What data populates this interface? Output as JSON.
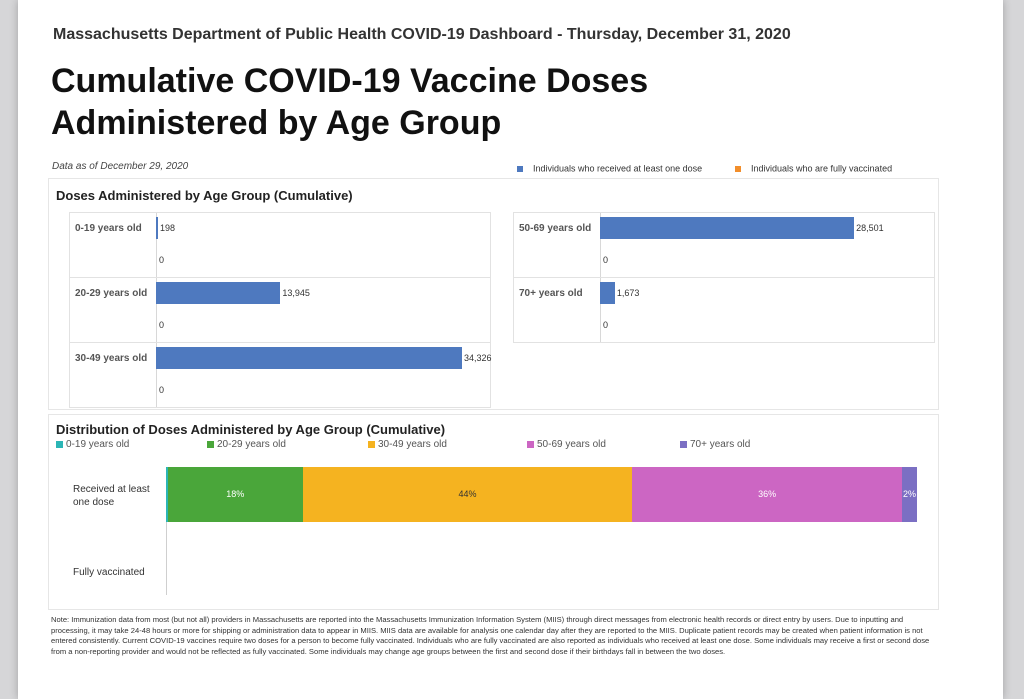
{
  "header": "Massachusetts Department of Public Health COVID-19 Dashboard - Thursday, December 31, 2020",
  "title_line1": "Cumulative COVID-19 Vaccine Doses",
  "title_line2": "Administered by Age Group",
  "as_of": "Data as of December 29, 2020",
  "legend": {
    "first_dose": "Individuals who received at least one dose",
    "fully": "Individuals who are fully vaccinated"
  },
  "colors": {
    "first_dose": "#4e79bf",
    "fully": "#f28e2b",
    "age_0_19": "#2bb5b5",
    "age_20_29": "#4aa63a",
    "age_30_49": "#f5b320",
    "age_50_69": "#cc66c3",
    "age_70": "#7b6fc3"
  },
  "panel1": {
    "title": "Doses Administered by Age Group (Cumulative)"
  },
  "panel2": {
    "title": "Distribution of Doses Administered by Age Group (Cumulative)",
    "row1_label": "Received at least one dose",
    "row2_label": "Fully vaccinated"
  },
  "note": "Note: Immunization data from most (but not all) providers in Massachusetts are reported into the Massachusetts Immunization Information System (MIIS) through direct messages from electronic health records or direct entry by users. Due to inputting and processing, it may take 24-48 hours or more for shipping or administration data to appear in MIIS. MIIS data are available for analysis one calendar day after they are reported to the MIIS. Duplicate patient records may be created when patient information is not entered consistently. Current COVID-19 vaccines require two doses for a person to become fully vaccinated. Individuals who are fully vaccinated are also reported as individuals who received at least one dose. Some individuals may receive a first or second dose from a non-reporting provider and would not be reflected as fully vaccinated. Some individuals may change age groups between the first and second dose if their birthdays fall in between the two doses.",
  "chart_data": [
    {
      "type": "bar",
      "title": "Doses Administered by Age Group (Cumulative)",
      "categories": [
        "0-19 years old",
        "20-29 years old",
        "30-49 years old",
        "50-69 years old",
        "70+ years old"
      ],
      "series": [
        {
          "name": "Individuals who received at least one dose",
          "values": [
            198,
            13945,
            34326,
            28501,
            1673
          ],
          "labels": [
            "198",
            "13,945",
            "34,326",
            "28,501",
            "1,673"
          ]
        },
        {
          "name": "Individuals who are fully vaccinated",
          "values": [
            0,
            0,
            0,
            0,
            0
          ],
          "labels": [
            "0",
            "0",
            "0",
            "0",
            "0"
          ]
        }
      ],
      "orientation": "horizontal"
    },
    {
      "type": "bar",
      "stacked": "percent",
      "title": "Distribution of Doses Administered by Age Group (Cumulative)",
      "categories": [
        "Received at least one dose",
        "Fully vaccinated"
      ],
      "series": [
        {
          "name": "0-19 years old",
          "values": [
            0.25,
            0
          ]
        },
        {
          "name": "20-29 years old",
          "values": [
            18,
            0
          ],
          "label": "18%"
        },
        {
          "name": "30-49 years old",
          "values": [
            44,
            0
          ],
          "label": "44%"
        },
        {
          "name": "50-69 years old",
          "values": [
            36,
            0
          ],
          "label": "36%"
        },
        {
          "name": "70+ years old",
          "values": [
            2,
            0
          ],
          "label": "2%"
        }
      ],
      "legend_position": "top"
    }
  ]
}
